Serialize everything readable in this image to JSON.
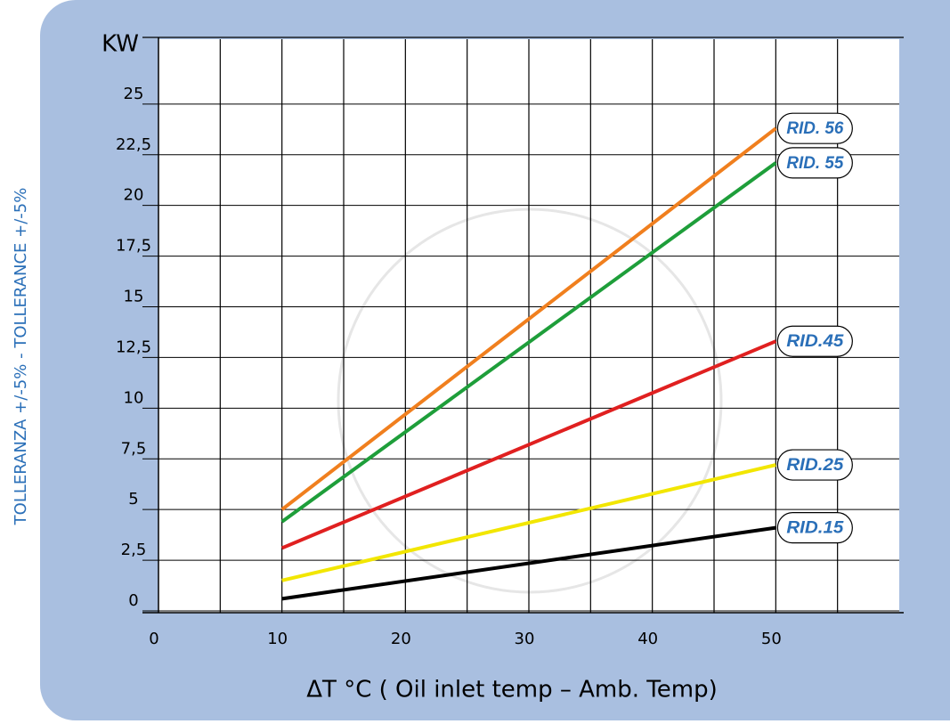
{
  "chart_data": {
    "type": "line",
    "y_axis_label": "KW",
    "x_axis_label": "ΔT °C ( Oil inlet temp – Amb. Temp)",
    "side_note": "TOLLERANZA +/-5% - TOLLERANCE +/-5%",
    "x": [
      10,
      50
    ],
    "xlim": [
      0,
      60
    ],
    "xticks": [
      0,
      10,
      20,
      30,
      40,
      50
    ],
    "xgrid": [
      5,
      10,
      15,
      20,
      25,
      30,
      35,
      40,
      45,
      50,
      55
    ],
    "ylim": [
      0,
      28.2
    ],
    "yticks": [
      {
        "value": 0,
        "label": "0"
      },
      {
        "value": 2.5,
        "label": "2,5"
      },
      {
        "value": 5,
        "label": "5"
      },
      {
        "value": 7.5,
        "label": "7,5"
      },
      {
        "value": 10,
        "label": "10"
      },
      {
        "value": 12.5,
        "label": "12,5"
      },
      {
        "value": 15,
        "label": "15"
      },
      {
        "value": 17.5,
        "label": "17,5"
      },
      {
        "value": 20,
        "label": "20"
      },
      {
        "value": 22.5,
        "label": "22,5"
      },
      {
        "value": 25,
        "label": "25"
      }
    ],
    "grid": true,
    "series": [
      {
        "name": "RID. 56",
        "color": "#f07f1e",
        "values": [
          5.0,
          23.8
        ]
      },
      {
        "name": "RID. 55",
        "color": "#1e9e3a",
        "values": [
          4.4,
          22.1
        ]
      },
      {
        "name": "RID.45",
        "color": "#e02020",
        "values": [
          3.1,
          13.3
        ]
      },
      {
        "name": "RID.25",
        "color": "#f2e600",
        "values": [
          1.5,
          7.2
        ]
      },
      {
        "name": "RID.15",
        "color": "#000000",
        "values": [
          0.6,
          4.1
        ]
      }
    ]
  }
}
